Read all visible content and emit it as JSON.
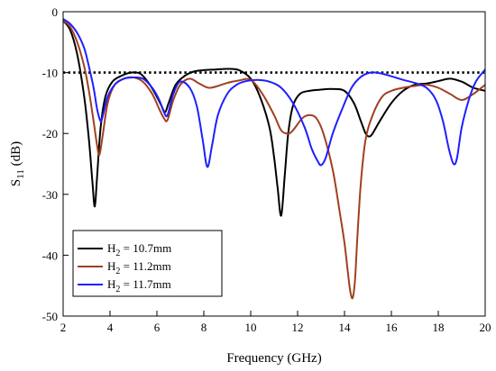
{
  "chart_data": {
    "type": "line",
    "title": "",
    "xlabel": "Frequency (GHz)",
    "ylabel": {
      "main": "S",
      "sub": "11",
      "unit": " (dB)"
    },
    "xlim": [
      2,
      20
    ],
    "ylim": [
      -50,
      0
    ],
    "xticks": [
      2,
      4,
      6,
      8,
      10,
      12,
      14,
      16,
      18,
      20
    ],
    "yticks": [
      0,
      -10,
      -20,
      -30,
      -40,
      -50
    ],
    "grid": false,
    "legend_position": "bottom-left",
    "reference_line": {
      "y": -10,
      "style": "dotted",
      "color": "#000000"
    },
    "series": [
      {
        "name": "H2 = 10.7mm",
        "label": {
          "main": "H",
          "sub": "2",
          "rest": " = 10.7mm"
        },
        "color": "#000000",
        "x": [
          2.0,
          2.3,
          2.6,
          2.9,
          3.1,
          3.25,
          3.35,
          3.45,
          3.6,
          3.8,
          4.1,
          4.5,
          4.9,
          5.3,
          5.7,
          6.0,
          6.2,
          6.35,
          6.5,
          6.8,
          7.2,
          7.6,
          8.0,
          8.5,
          9.0,
          9.5,
          10.0,
          10.4,
          10.8,
          11.0,
          11.15,
          11.3,
          11.45,
          11.6,
          11.8,
          12.1,
          12.5,
          13.0,
          13.5,
          14.0,
          14.4,
          14.7,
          14.9,
          15.05,
          15.2,
          15.5,
          16.0,
          16.5,
          17.0,
          17.5,
          18.0,
          18.5,
          19.0,
          19.5,
          20.0
        ],
        "y": [
          -1.5,
          -3,
          -7,
          -14,
          -21,
          -28,
          -32,
          -27,
          -19,
          -14,
          -11.5,
          -10.5,
          -10,
          -10.2,
          -12,
          -14,
          -15.5,
          -16.5,
          -15,
          -12,
          -10.5,
          -9.8,
          -9.6,
          -9.5,
          -9.4,
          -9.6,
          -11,
          -14,
          -19,
          -24,
          -29,
          -33.5,
          -27,
          -20,
          -15.5,
          -13.5,
          -13,
          -12.8,
          -12.7,
          -13,
          -15,
          -18,
          -20,
          -20.5,
          -20,
          -18,
          -15,
          -13,
          -12,
          -11.8,
          -11.4,
          -11,
          -11.5,
          -12.5,
          -13
        ]
      },
      {
        "name": "H2 = 11.2mm",
        "label": {
          "main": "H",
          "sub": "2",
          "rest": " = 11.2mm"
        },
        "color": "#a0401f",
        "x": [
          2.0,
          2.3,
          2.6,
          2.9,
          3.1,
          3.3,
          3.45,
          3.55,
          3.7,
          3.9,
          4.2,
          4.6,
          5.0,
          5.4,
          5.8,
          6.1,
          6.3,
          6.45,
          6.7,
          7.0,
          7.4,
          7.8,
          8.2,
          8.6,
          9.0,
          9.5,
          10.0,
          10.5,
          11.0,
          11.3,
          11.6,
          11.8,
          12.2,
          12.5,
          12.8,
          13.1,
          13.5,
          13.8,
          14.0,
          14.15,
          14.25,
          14.35,
          14.45,
          14.55,
          14.7,
          14.9,
          15.2,
          15.6,
          16.0,
          16.5,
          17.0,
          17.5,
          18.0,
          18.5,
          19.0,
          19.5,
          20.0
        ],
        "y": [
          -1.5,
          -2.5,
          -5,
          -9,
          -13,
          -18,
          -22,
          -23.5,
          -20,
          -15,
          -12,
          -11,
          -10.8,
          -11.5,
          -13.5,
          -16,
          -17.5,
          -17.8,
          -14.5,
          -12,
          -11,
          -11.8,
          -12.5,
          -12.2,
          -11.7,
          -11.3,
          -11.2,
          -13.5,
          -17,
          -19.5,
          -20,
          -19.5,
          -17.5,
          -17,
          -17.5,
          -20,
          -26,
          -33,
          -38,
          -43,
          -46,
          -47,
          -44,
          -37,
          -28,
          -21,
          -17,
          -14,
          -13,
          -12.5,
          -12.2,
          -12,
          -12.5,
          -13.5,
          -14.5,
          -13.5,
          -12
        ]
      },
      {
        "name": "H2 = 11.7mm",
        "label": {
          "main": "H",
          "sub": "2",
          "rest": " = 11.7mm"
        },
        "color": "#1f1fff",
        "x": [
          2.0,
          2.3,
          2.6,
          2.9,
          3.1,
          3.3,
          3.45,
          3.6,
          3.7,
          3.9,
          4.2,
          4.6,
          5.0,
          5.4,
          5.8,
          6.1,
          6.3,
          6.45,
          6.7,
          7.0,
          7.4,
          7.7,
          7.95,
          8.15,
          8.35,
          8.6,
          9.0,
          9.4,
          9.8,
          10.3,
          10.8,
          11.3,
          11.8,
          12.3,
          12.6,
          12.85,
          13.0,
          13.2,
          13.5,
          13.9,
          14.3,
          14.7,
          15.1,
          15.5,
          16.0,
          16.5,
          17.0,
          17.5,
          17.9,
          18.2,
          18.45,
          18.65,
          18.8,
          19.0,
          19.3,
          19.6,
          20.0
        ],
        "y": [
          -1.2,
          -2,
          -3.5,
          -6,
          -9,
          -12.5,
          -16,
          -18,
          -17,
          -14,
          -12,
          -11,
          -10.8,
          -11,
          -12.5,
          -14.5,
          -16.5,
          -17,
          -13.5,
          -11.5,
          -12.5,
          -15.5,
          -21,
          -25.5,
          -22,
          -17,
          -13.5,
          -12,
          -11.4,
          -11.2,
          -11.5,
          -12.5,
          -15,
          -19,
          -22.5,
          -24.5,
          -25.2,
          -24,
          -20,
          -16,
          -12.5,
          -10.7,
          -10,
          -10.1,
          -10.6,
          -11.2,
          -11.7,
          -12.5,
          -14.5,
          -18,
          -22.5,
          -25,
          -24,
          -19,
          -14.5,
          -11.5,
          -9.5
        ]
      }
    ]
  }
}
